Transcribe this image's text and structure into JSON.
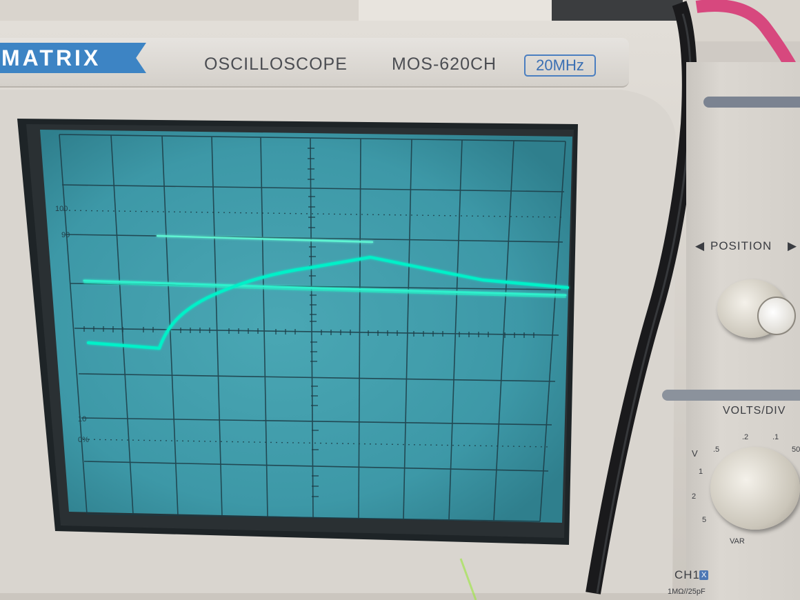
{
  "brand": {
    "logo": "MATRIX",
    "device_type": "OSCILLOSCOPE",
    "model": "MOS-620CH",
    "bandwidth": "20MHz"
  },
  "graticule": {
    "label_100": "100",
    "label_90": "90",
    "label_10": "10",
    "label_0": "0%"
  },
  "controls": {
    "position_label": "POSITION",
    "volts_div_label": "VOLTS/DIV",
    "volts_unit": "V",
    "mv_scale": [
      ".2",
      ".1",
      "50"
    ],
    "v_scale": [
      ".5",
      "1",
      "2",
      "5"
    ],
    "var_label": "VAR",
    "ch1_label": "CH1",
    "ch1_x_label": "X",
    "input_spec": "1MΩ//25pF"
  },
  "colors": {
    "trace": "#00f0c8",
    "screen": "#3f9fae",
    "bezel": "#ddd9d3",
    "brand_blue": "#3d84c4",
    "cable_pink": "#d7487e",
    "cable_black": "#1a1a1c"
  }
}
